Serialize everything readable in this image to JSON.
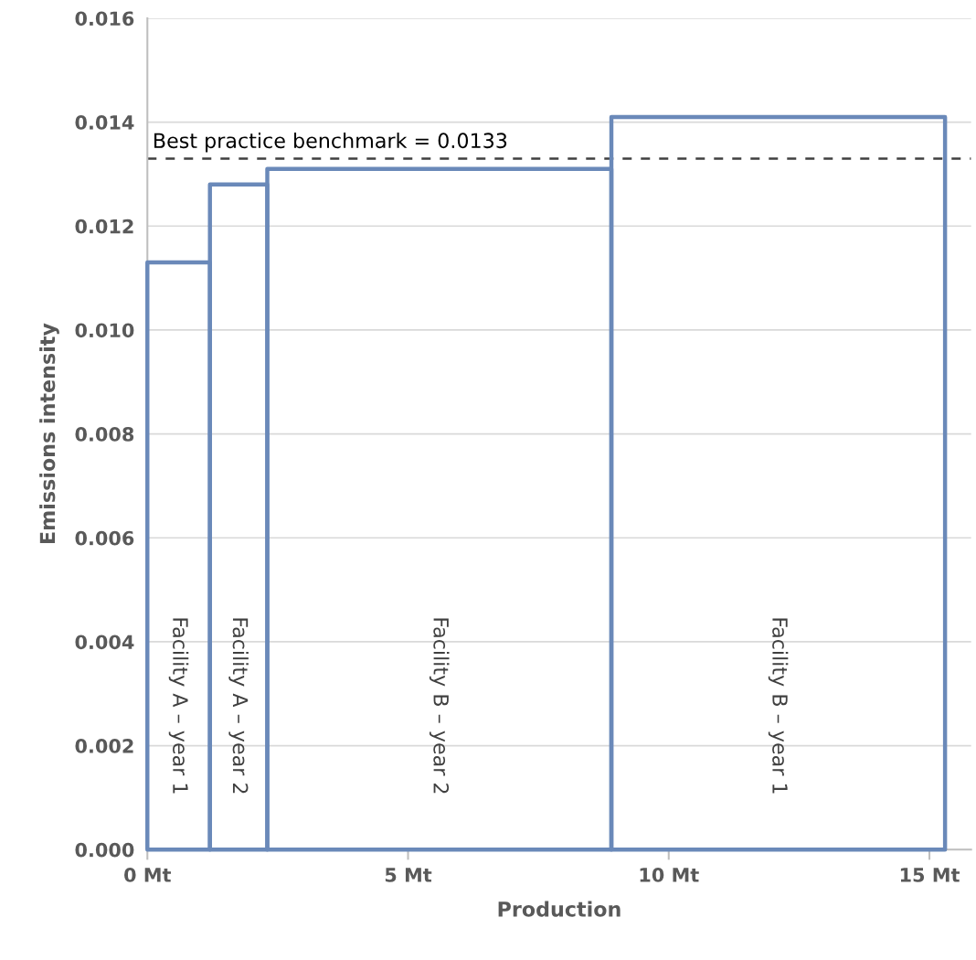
{
  "chart_data": {
    "type": "histogram",
    "xlabel": "Production",
    "ylabel": "Emissions intensity",
    "bins": [
      0,
      1.2,
      2.3,
      8.9,
      15.3
    ],
    "annotations": [
      "Facility A – year 1",
      "Facility A – year 2",
      "Facility B – year 2",
      "Facility B – year 1"
    ],
    "series": [
      {
        "color": "#6a89b9",
        "values": [
          0.0113,
          0.0128,
          0.0131,
          0.0141
        ]
      }
    ],
    "xlim": [
      0,
      15.8
    ],
    "xticks": [
      {
        "value": 0,
        "label": "0 Mt"
      },
      {
        "value": 5,
        "label": "5 Mt"
      },
      {
        "value": 10,
        "label": "10 Mt"
      },
      {
        "value": 15,
        "label": "15 Mt"
      }
    ],
    "ylim": [
      0,
      0.016
    ],
    "yticks": [
      {
        "value": 0,
        "label": "0.000"
      },
      {
        "value": 0.002,
        "label": "0.002"
      },
      {
        "value": 0.004,
        "label": "0.004"
      },
      {
        "value": 0.006,
        "label": "0.006"
      },
      {
        "value": 0.008,
        "label": "0.008"
      },
      {
        "value": 0.01,
        "label": "0.010"
      },
      {
        "value": 0.012,
        "label": "0.012"
      },
      {
        "value": 0.014,
        "label": "0.014"
      },
      {
        "value": 0.016,
        "label": "0.016"
      }
    ],
    "grid": "y",
    "ref_lines": [
      {
        "axis": "y",
        "value": 0.0133,
        "label": "Best practice benchmark = 0.0133",
        "color": "#404040",
        "line_style": "dashed"
      }
    ]
  }
}
